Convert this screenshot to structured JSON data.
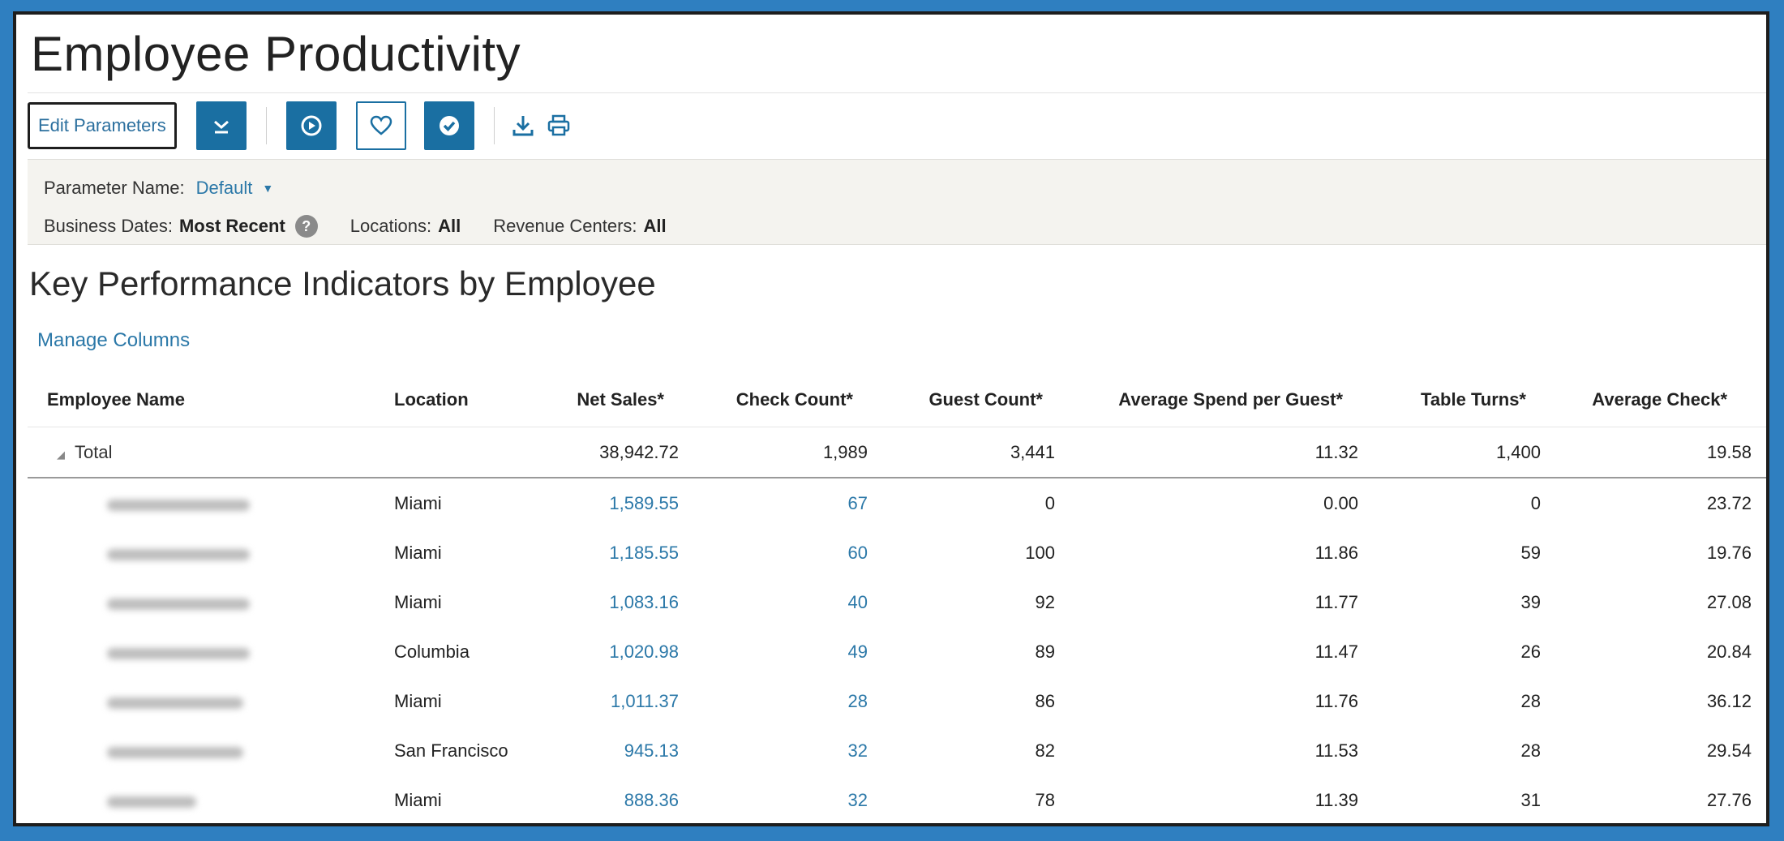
{
  "page_title": "Employee Productivity",
  "toolbar": {
    "edit_parameters_label": "Edit Parameters"
  },
  "parameters": {
    "parameter_name_label": "Parameter Name:",
    "parameter_name_value": "Default",
    "business_dates_label": "Business Dates:",
    "business_dates_value": "Most Recent",
    "help_glyph": "?",
    "locations_label": "Locations:",
    "locations_value": "All",
    "revenue_centers_label": "Revenue Centers:",
    "revenue_centers_value": "All"
  },
  "section_title": "Key Performance Indicators by Employee",
  "manage_columns_label": "Manage Columns",
  "table": {
    "headers": [
      "Employee Name",
      "Location",
      "Net Sales*",
      "Check Count*",
      "Guest Count*",
      "Average Spend per Guest*",
      "Table Turns*",
      "Average Check*"
    ],
    "total": {
      "label": "Total",
      "net_sales": "38,942.72",
      "check_count": "1,989",
      "guest_count": "3,441",
      "avg_spend": "11.32",
      "table_turns": "1,400",
      "avg_check": "19.58"
    },
    "rows": [
      {
        "location": "Miami",
        "net_sales": "1,589.55",
        "check_count": "67",
        "guest_count": "0",
        "avg_spend": "0.00",
        "table_turns": "0",
        "avg_check": "23.72"
      },
      {
        "location": "Miami",
        "net_sales": "1,185.55",
        "check_count": "60",
        "guest_count": "100",
        "avg_spend": "11.86",
        "table_turns": "59",
        "avg_check": "19.76"
      },
      {
        "location": "Miami",
        "net_sales": "1,083.16",
        "check_count": "40",
        "guest_count": "92",
        "avg_spend": "11.77",
        "table_turns": "39",
        "avg_check": "27.08"
      },
      {
        "location": "Columbia",
        "net_sales": "1,020.98",
        "check_count": "49",
        "guest_count": "89",
        "avg_spend": "11.47",
        "table_turns": "26",
        "avg_check": "20.84"
      },
      {
        "location": "Miami",
        "net_sales": "1,011.37",
        "check_count": "28",
        "guest_count": "86",
        "avg_spend": "11.76",
        "table_turns": "28",
        "avg_check": "36.12"
      },
      {
        "location": "San Francisco",
        "net_sales": "945.13",
        "check_count": "32",
        "guest_count": "82",
        "avg_spend": "11.53",
        "table_turns": "28",
        "avg_check": "29.54"
      },
      {
        "location": "Miami",
        "net_sales": "888.36",
        "check_count": "32",
        "guest_count": "78",
        "avg_spend": "11.39",
        "table_turns": "31",
        "avg_check": "27.76"
      }
    ]
  },
  "colors": {
    "accent": "#1a6fa2",
    "link": "#2b78a8",
    "frame_border": "#2f7fc0"
  }
}
